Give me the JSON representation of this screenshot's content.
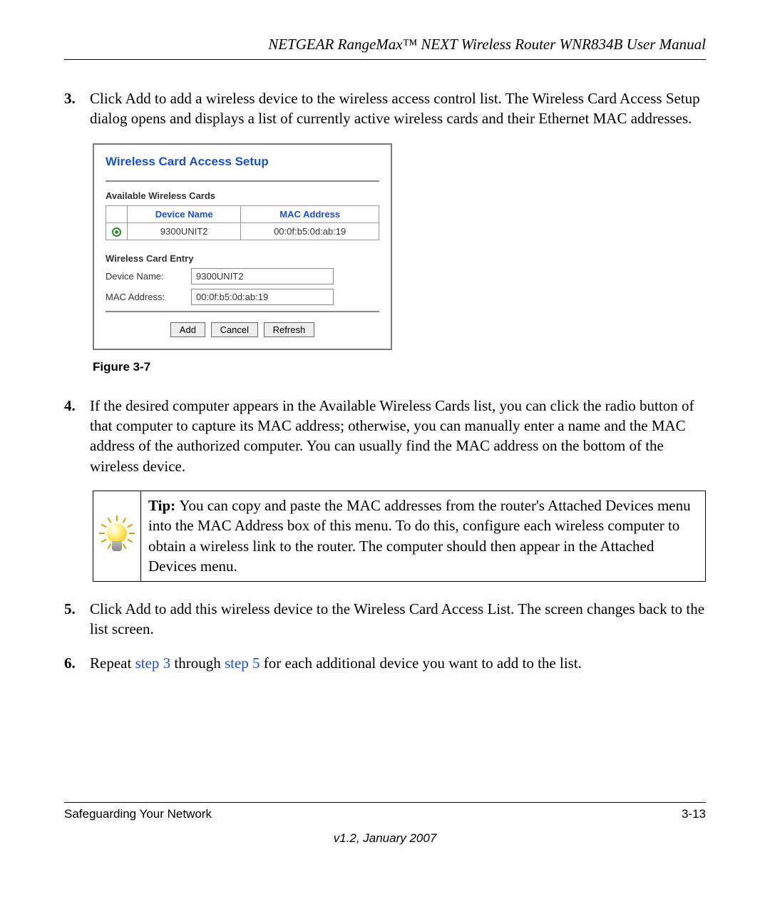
{
  "header": {
    "title": "NETGEAR RangeMax™ NEXT Wireless Router WNR834B User Manual"
  },
  "steps": {
    "s3": {
      "num": "3.",
      "text": "Click Add to add a wireless device to the wireless access control list. The Wireless Card Access Setup dialog opens and displays a list of currently active wireless cards and their Ethernet MAC addresses."
    },
    "s4": {
      "num": "4.",
      "text": "If the desired computer appears in the Available Wireless Cards list, you can click the radio button of that computer to capture its MAC address; otherwise, you can manually enter a name and the MAC address of the authorized computer. You can usually find the MAC address on the bottom of the wireless device."
    },
    "s5": {
      "num": "5.",
      "text": "Click Add to add this wireless device to the Wireless Card Access List. The screen changes back to the list screen."
    },
    "s6": {
      "num": "6.",
      "pre": "Repeat ",
      "link1": "step 3",
      "mid": " through ",
      "link2": "step 5",
      "post": " for each additional device you want to add to the list."
    }
  },
  "dialog": {
    "title": "Wireless Card Access Setup",
    "available_label": "Available Wireless Cards",
    "col_device": "Device Name",
    "col_mac": "MAC Address",
    "row_device": "9300UNIT2",
    "row_mac": "00:0f:b5:0d:ab:19",
    "entry_label": "Wireless Card Entry",
    "fld_device_label": "Device Name:",
    "fld_device_value": "9300UNIT2",
    "fld_mac_label": "MAC Address:",
    "fld_mac_value": "00:0f:b5:0d:ab:19",
    "btn_add": "Add",
    "btn_cancel": "Cancel",
    "btn_refresh": "Refresh"
  },
  "figure_caption": "Figure 3-7",
  "tip": {
    "label": "Tip: ",
    "text": "You can copy and paste the MAC addresses from the router's Attached Devices menu into the MAC Address box of this menu. To do this, configure each wireless computer to obtain a wireless link to the router. The computer should then appear in the Attached Devices menu."
  },
  "footer": {
    "left": "Safeguarding Your Network",
    "right": "3-13",
    "version": "v1.2, January 2007"
  },
  "colors": {
    "link": "#1a4fd6"
  }
}
